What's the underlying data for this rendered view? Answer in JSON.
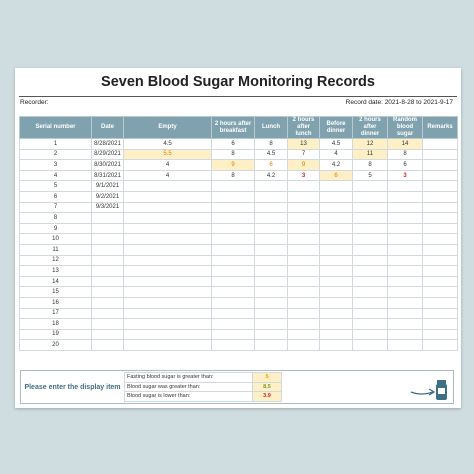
{
  "sheet": {
    "title": "Seven Blood Sugar Monitoring Records",
    "recorder_label": "Recorder:",
    "record_date": "Record date: 2021-8-28 to 2021-9-17"
  },
  "table": {
    "headers": [
      "Serial number",
      "Date",
      "Empty",
      "2 hours after breakfast",
      "Lunch",
      "2 hours after lunch",
      "Before dinner",
      "2 hours after dinner",
      "Random blood sugar",
      "Remarks"
    ],
    "rows": [
      {
        "serial": "1",
        "date": "8/28/2021",
        "empty": "4.5",
        "after_breakfast": "6",
        "lunch": "8",
        "after_lunch": "13",
        "before_dinner": "4.5",
        "after_dinner": "12",
        "random": "14",
        "remarks": ""
      },
      {
        "serial": "2",
        "date": "8/29/2021",
        "empty": "5.5",
        "after_breakfast": "8",
        "lunch": "4.5",
        "after_lunch": "7",
        "before_dinner": "4",
        "after_dinner": "11",
        "random": "8",
        "remarks": ""
      },
      {
        "serial": "3",
        "date": "8/30/2021",
        "empty": "4",
        "after_breakfast": "9",
        "lunch": "6",
        "after_lunch": "9",
        "before_dinner": "4.2",
        "after_dinner": "8",
        "random": "6",
        "remarks": ""
      },
      {
        "serial": "4",
        "date": "8/31/2021",
        "empty": "4",
        "after_breakfast": "8",
        "lunch": "4.2",
        "after_lunch": "3",
        "before_dinner": "6",
        "after_dinner": "5",
        "random": "3",
        "remarks": ""
      },
      {
        "serial": "5",
        "date": "9/1/2021",
        "empty": "",
        "after_breakfast": "",
        "lunch": "",
        "after_lunch": "",
        "before_dinner": "",
        "after_dinner": "",
        "random": "",
        "remarks": ""
      },
      {
        "serial": "6",
        "date": "9/2/2021",
        "empty": "",
        "after_breakfast": "",
        "lunch": "",
        "after_lunch": "",
        "before_dinner": "",
        "after_dinner": "",
        "random": "",
        "remarks": ""
      },
      {
        "serial": "7",
        "date": "9/3/2021",
        "empty": "",
        "after_breakfast": "",
        "lunch": "",
        "after_lunch": "",
        "before_dinner": "",
        "after_dinner": "",
        "random": "",
        "remarks": ""
      },
      {
        "serial": "8",
        "date": "",
        "empty": "",
        "after_breakfast": "",
        "lunch": "",
        "after_lunch": "",
        "before_dinner": "",
        "after_dinner": "",
        "random": "",
        "remarks": ""
      },
      {
        "serial": "9",
        "date": "",
        "empty": "",
        "after_breakfast": "",
        "lunch": "",
        "after_lunch": "",
        "before_dinner": "",
        "after_dinner": "",
        "random": "",
        "remarks": ""
      },
      {
        "serial": "10",
        "date": "",
        "empty": "",
        "after_breakfast": "",
        "lunch": "",
        "after_lunch": "",
        "before_dinner": "",
        "after_dinner": "",
        "random": "",
        "remarks": ""
      },
      {
        "serial": "11",
        "date": "",
        "empty": "",
        "after_breakfast": "",
        "lunch": "",
        "after_lunch": "",
        "before_dinner": "",
        "after_dinner": "",
        "random": "",
        "remarks": ""
      },
      {
        "serial": "12",
        "date": "",
        "empty": "",
        "after_breakfast": "",
        "lunch": "",
        "after_lunch": "",
        "before_dinner": "",
        "after_dinner": "",
        "random": "",
        "remarks": ""
      },
      {
        "serial": "13",
        "date": "",
        "empty": "",
        "after_breakfast": "",
        "lunch": "",
        "after_lunch": "",
        "before_dinner": "",
        "after_dinner": "",
        "random": "",
        "remarks": ""
      },
      {
        "serial": "14",
        "date": "",
        "empty": "",
        "after_breakfast": "",
        "lunch": "",
        "after_lunch": "",
        "before_dinner": "",
        "after_dinner": "",
        "random": "",
        "remarks": ""
      },
      {
        "serial": "15",
        "date": "",
        "empty": "",
        "after_breakfast": "",
        "lunch": "",
        "after_lunch": "",
        "before_dinner": "",
        "after_dinner": "",
        "random": "",
        "remarks": ""
      },
      {
        "serial": "16",
        "date": "",
        "empty": "",
        "after_breakfast": "",
        "lunch": "",
        "after_lunch": "",
        "before_dinner": "",
        "after_dinner": "",
        "random": "",
        "remarks": ""
      },
      {
        "serial": "17",
        "date": "",
        "empty": "",
        "after_breakfast": "",
        "lunch": "",
        "after_lunch": "",
        "before_dinner": "",
        "after_dinner": "",
        "random": "",
        "remarks": ""
      },
      {
        "serial": "18",
        "date": "",
        "empty": "",
        "after_breakfast": "",
        "lunch": "",
        "after_lunch": "",
        "before_dinner": "",
        "after_dinner": "",
        "random": "",
        "remarks": ""
      },
      {
        "serial": "19",
        "date": "",
        "empty": "",
        "after_breakfast": "",
        "lunch": "",
        "after_lunch": "",
        "before_dinner": "",
        "after_dinner": "",
        "random": "",
        "remarks": ""
      },
      {
        "serial": "20",
        "date": "",
        "empty": "",
        "after_breakfast": "",
        "lunch": "",
        "after_lunch": "",
        "before_dinner": "",
        "after_dinner": "",
        "random": "",
        "remarks": ""
      }
    ]
  },
  "display_settings": {
    "prompt": "Please enter the display item",
    "items": [
      {
        "label": "Fasting blood sugar is greater than:",
        "value": "5"
      },
      {
        "label": "Blood sugar was greater than:",
        "value": "8.5"
      },
      {
        "label": "Blood sugar is lower than:",
        "value": "3.9"
      }
    ]
  },
  "icons": {
    "decoration": "arrow-to-medicine-bottle-icon"
  },
  "colors": {
    "header_bg": "#7fa2ae",
    "highlight_bg": "#fdf0c6",
    "high_value": "#e07b00",
    "low_value": "#d81e1e",
    "page_bg": "#cfdde0"
  }
}
